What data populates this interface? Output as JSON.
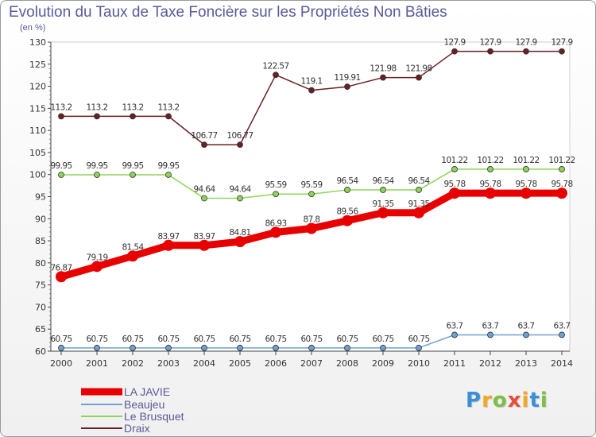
{
  "chart_data": {
    "type": "line",
    "title": "Evolution du Taux de Taxe Foncière sur les Propriétés Non Bâties",
    "ylabel": "(en %)",
    "xlabel": "",
    "ylim": [
      60,
      130
    ],
    "yticks": [
      60,
      65,
      70,
      75,
      80,
      85,
      90,
      95,
      100,
      105,
      110,
      115,
      120,
      125,
      130
    ],
    "x": [
      "2000",
      "2001",
      "2002",
      "2003",
      "2004",
      "2005",
      "2006",
      "2007",
      "2008",
      "2009",
      "2010",
      "2011",
      "2012",
      "2013",
      "2014"
    ],
    "legend_position": "bottom-left",
    "grid": false,
    "series": [
      {
        "name": "Draix",
        "color": "#6b1f24",
        "values": [
          113.2,
          113.2,
          113.2,
          113.2,
          106.77,
          106.77,
          122.57,
          119.1,
          119.91,
          121.98,
          121.98,
          127.9,
          127.9,
          127.9,
          127.9
        ],
        "labels": [
          "113.2",
          "113.2",
          "113.2",
          "113.2",
          "106.77",
          "106.77",
          "122.57",
          "119.1",
          "119.91",
          "121.98",
          "121.98",
          "127.9",
          "127.9",
          "127.9",
          "127.9"
        ]
      },
      {
        "name": "Le Brusquet",
        "color": "#8fd45a",
        "values": [
          99.95,
          99.95,
          99.95,
          99.95,
          94.64,
          94.64,
          95.59,
          95.59,
          96.54,
          96.54,
          96.54,
          101.22,
          101.22,
          101.22,
          101.22
        ],
        "labels": [
          "99.95",
          "99.95",
          "99.95",
          "99.95",
          "94.64",
          "94.64",
          "95.59",
          "95.59",
          "96.54",
          "96.54",
          "96.54",
          "101.22",
          "101.22",
          "101.22",
          "101.22"
        ]
      },
      {
        "name": "LA JAVIE",
        "color": "#e80000",
        "values": [
          76.87,
          79.19,
          81.54,
          83.97,
          83.97,
          84.81,
          86.93,
          87.8,
          89.56,
          91.35,
          91.35,
          95.78,
          95.78,
          95.78,
          95.78
        ],
        "labels": [
          "76.87",
          "79.19",
          "81.54",
          "83.97",
          "83.97",
          "84.81",
          "86.93",
          "87.8",
          "89.56",
          "91.35",
          "91.35",
          "95.78",
          "95.78",
          "95.78",
          "95.78"
        ]
      },
      {
        "name": "Beaujeu",
        "color": "#6fa0d0",
        "values": [
          60.75,
          60.75,
          60.75,
          60.75,
          60.75,
          60.75,
          60.75,
          60.75,
          60.75,
          60.75,
          60.75,
          63.7,
          63.7,
          63.7,
          63.7
        ],
        "labels": [
          "60.75",
          "60.75",
          "60.75",
          "60.75",
          "60.75",
          "60.75",
          "60.75",
          "60.75",
          "60.75",
          "60.75",
          "60.75",
          "63.7",
          "63.7",
          "63.7",
          "63.7"
        ]
      }
    ],
    "legend": [
      "LA JAVIE",
      "Beaujeu",
      "Le Brusquet",
      "Draix"
    ]
  },
  "logo": {
    "letters": [
      "P",
      "r",
      "o",
      "x",
      "i",
      "t",
      "i"
    ],
    "colors": [
      "#3a8fd9",
      "#f5a623",
      "#7bc043",
      "#e84c3d",
      "#f5a623",
      "#3a8fd9",
      "#7bc043"
    ]
  }
}
